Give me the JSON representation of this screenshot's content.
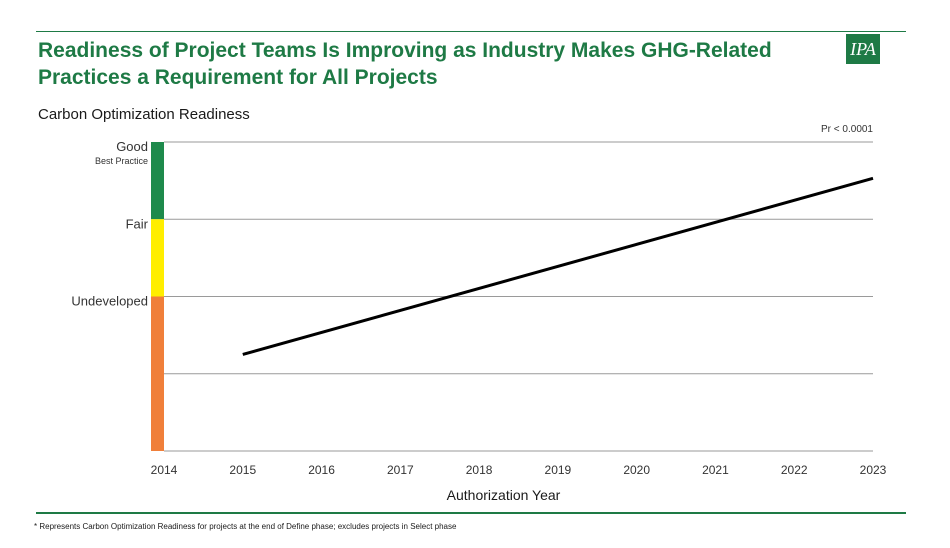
{
  "slide": {
    "title": "Readiness of Project Teams Is Improving as Industry Makes GHG-Related\nPractices a Requirement for All Projects",
    "logo_text": "IPA",
    "footnote": "* Represents Carbon Optimization Readiness for projects at the end of Define phase; excludes projects in Select phase"
  },
  "colors": {
    "brand": "#1e7a45",
    "band_good": "#1e8a4c",
    "band_fair": "#ffee00",
    "band_undeveloped": "#f07f3a",
    "line": "#000000",
    "grid": "#9a9a9a"
  },
  "chart_data": {
    "type": "line",
    "title": "Carbon Optimization Readiness",
    "xlabel": "Authorization Year",
    "ylabel": "",
    "annotation": "Pr < 0.0001",
    "x_ticks": [
      "2014",
      "2015",
      "2016",
      "2017",
      "2018",
      "2019",
      "2020",
      "2021",
      "2022",
      "2023"
    ],
    "xlim": [
      2014,
      2023
    ],
    "ylim": [
      0,
      4
    ],
    "y_levels": [
      {
        "label": "Good",
        "sublabel": "Best Practice",
        "value": 4
      },
      {
        "label": "Fair",
        "sublabel": "",
        "value": 3
      },
      {
        "label": "Undeveloped",
        "sublabel": "",
        "value": 2
      }
    ],
    "bands": [
      {
        "name": "Good",
        "from": 3,
        "to": 4,
        "color": "#1e8a4c"
      },
      {
        "name": "Fair",
        "from": 2,
        "to": 3,
        "color": "#ffee00"
      },
      {
        "name": "Undeveloped",
        "from": 0,
        "to": 2,
        "color": "#f07f3a"
      }
    ],
    "gridlines": [
      1,
      2,
      3,
      4
    ],
    "series": [
      {
        "x": [
          2015,
          2023
        ],
        "y": [
          1.25,
          3.53
        ]
      }
    ]
  }
}
